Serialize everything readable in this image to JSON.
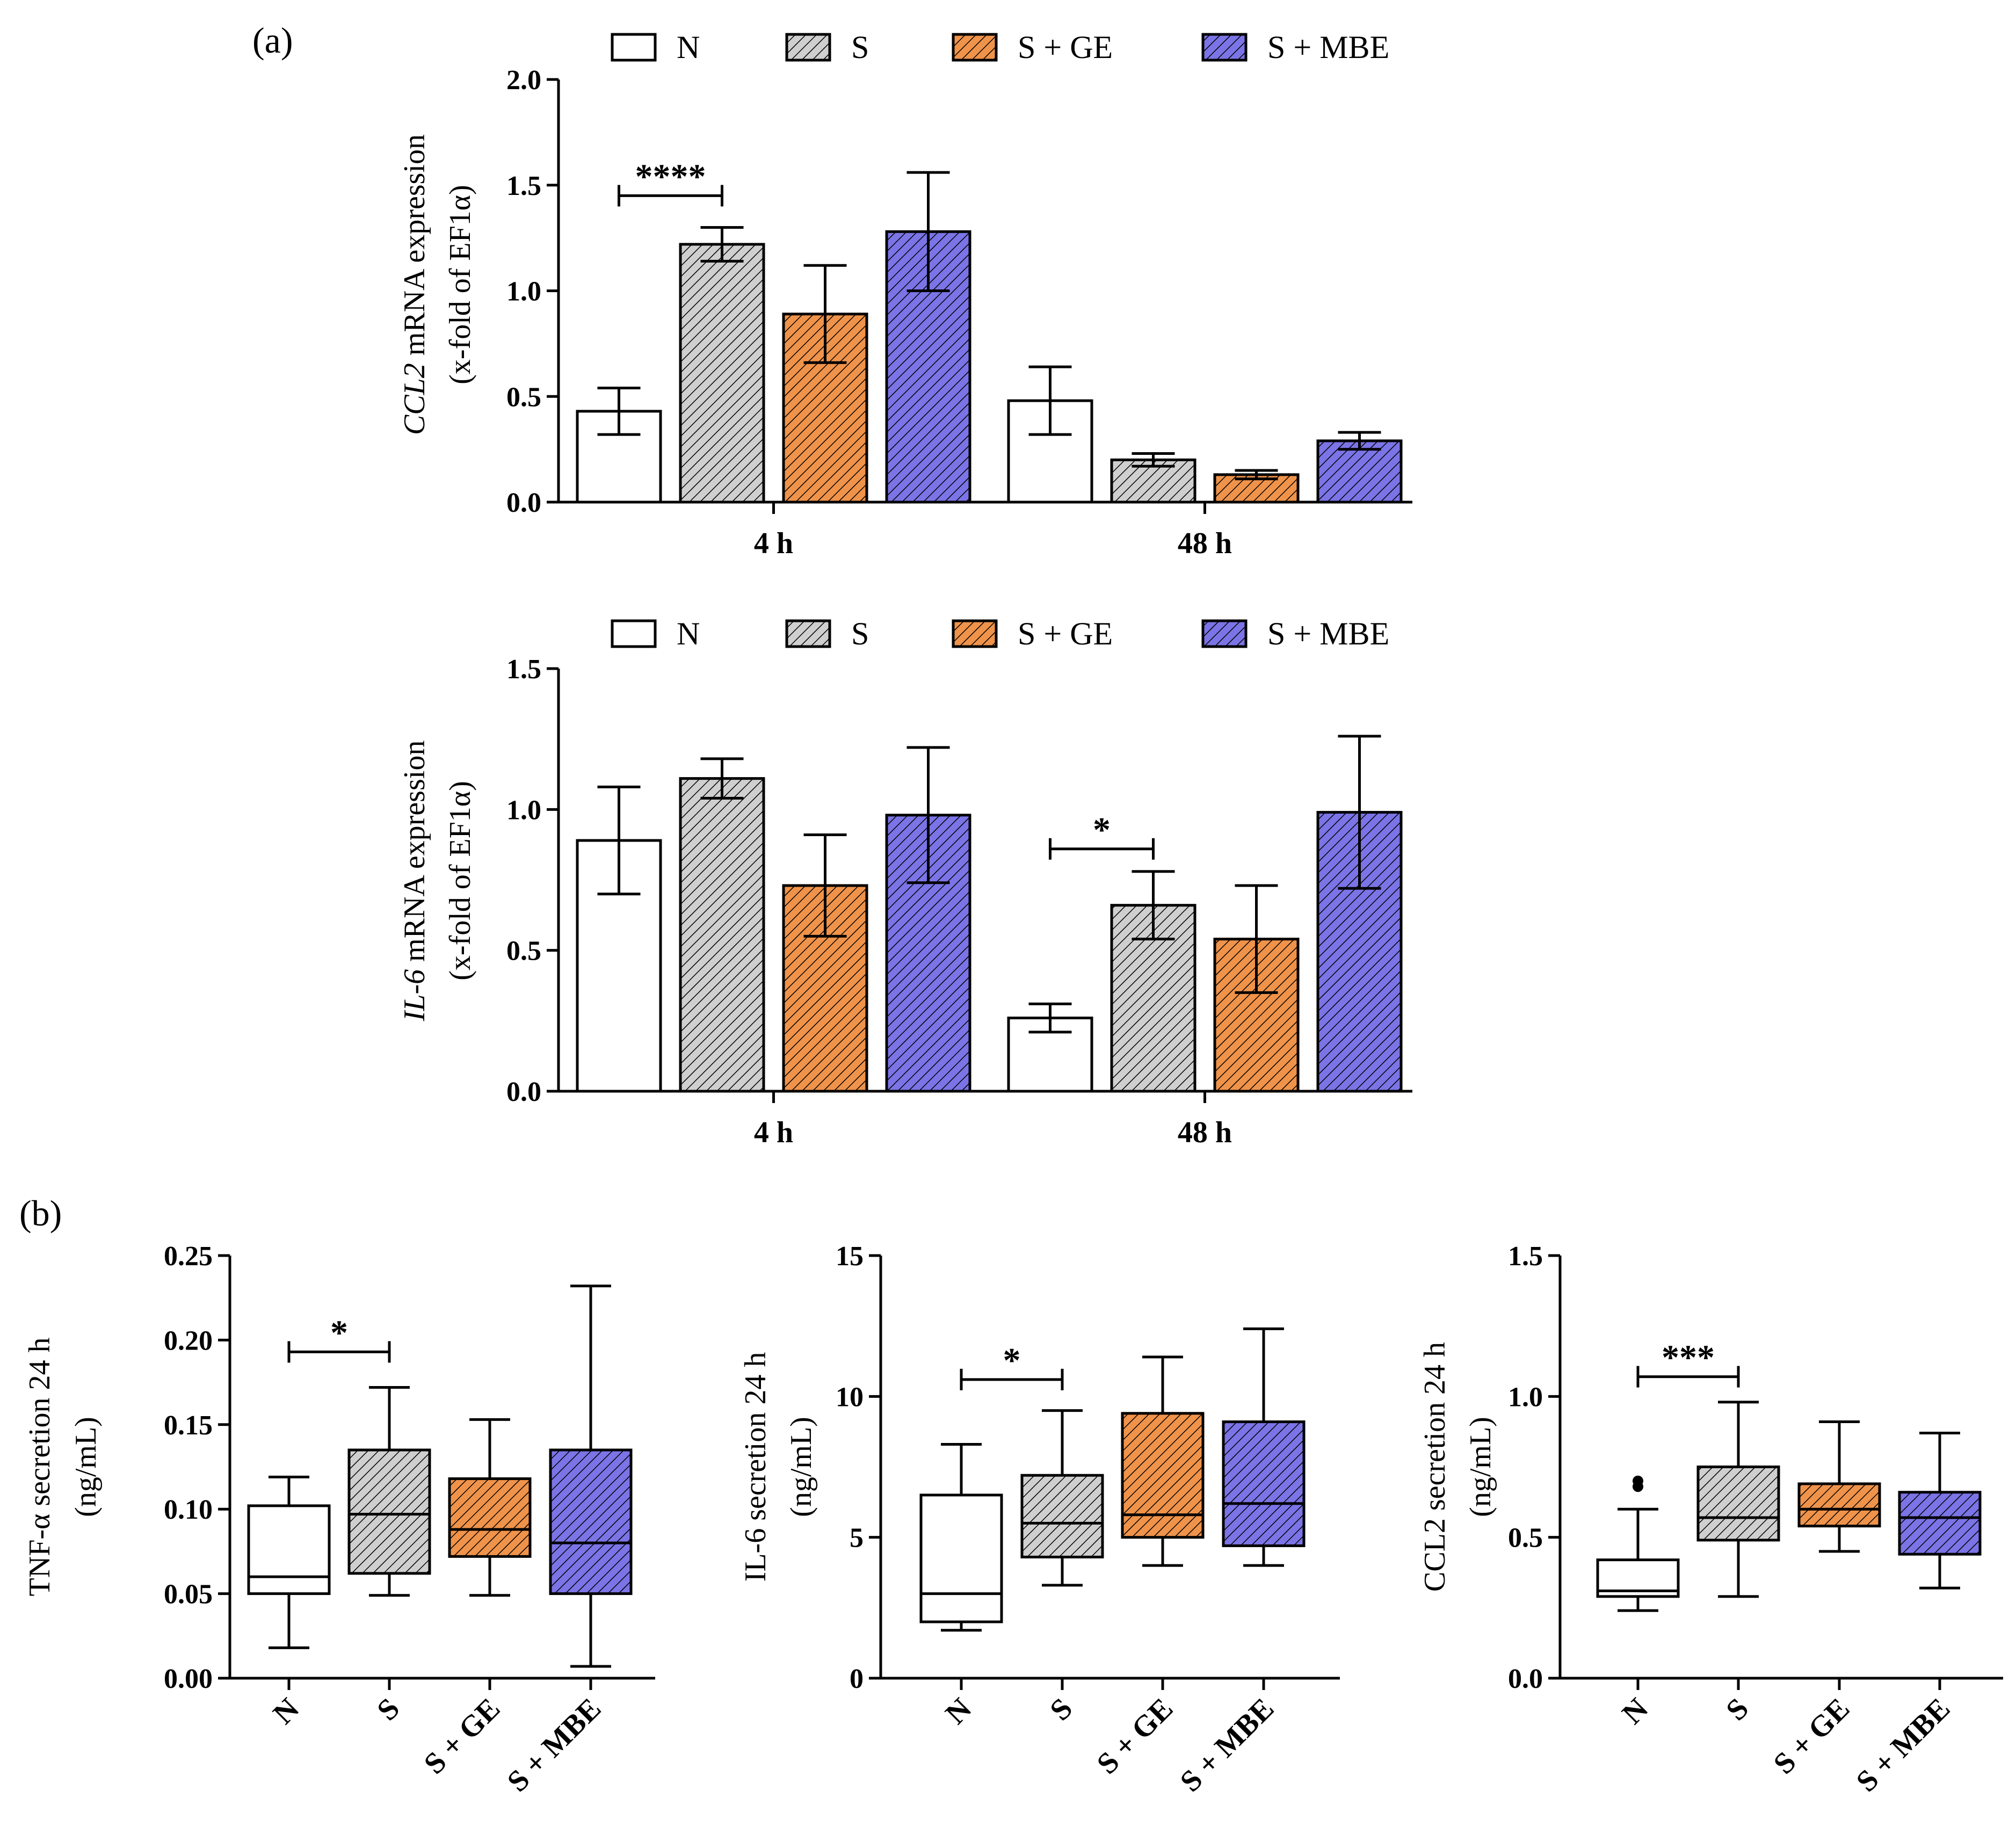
{
  "panel_labels": {
    "a": "(a)",
    "b": "(b)"
  },
  "legend": [
    {
      "name": "N",
      "fill": "#ffffff",
      "hatch": false
    },
    {
      "name": "S",
      "fill": "#cfcfcf",
      "hatch": true
    },
    {
      "name": "S + GE",
      "fill": "#f0934a",
      "hatch": true
    },
    {
      "name": "S + MBE",
      "fill": "#7b74e6",
      "hatch": true
    }
  ],
  "chart_data": [
    {
      "id": "ccl2_mrna",
      "type": "bar",
      "ylabel_italic": "CCL2",
      "ylabel_rest": " mRNA expression",
      "ylabel_line2": "(x-fold of EF1α)",
      "categories": [
        "4 h",
        "48 h"
      ],
      "ylim": [
        0,
        2.0
      ],
      "yticks": [
        "0.0",
        "0.5",
        "1.0",
        "1.5",
        "2.0"
      ],
      "series": [
        {
          "name": "N",
          "values": [
            0.43,
            0.48
          ],
          "errors": [
            0.11,
            0.16
          ]
        },
        {
          "name": "S",
          "values": [
            1.22,
            0.2
          ],
          "errors": [
            0.08,
            0.03
          ]
        },
        {
          "name": "S + GE",
          "values": [
            0.89,
            0.13
          ],
          "errors": [
            0.23,
            0.02
          ]
        },
        {
          "name": "S + MBE",
          "values": [
            1.28,
            0.29
          ],
          "errors": [
            0.28,
            0.04
          ]
        }
      ],
      "significance": [
        {
          "category": 0,
          "from": 0,
          "to": 1,
          "label": "****",
          "level": 1.45
        }
      ]
    },
    {
      "id": "il6_mrna",
      "type": "bar",
      "ylabel_italic": "IL-6",
      "ylabel_rest": " mRNA expression",
      "ylabel_line2": "(x-fold of EF1α)",
      "categories": [
        "4 h",
        "48 h"
      ],
      "ylim": [
        0,
        1.5
      ],
      "yticks": [
        "0.0",
        "0.5",
        "1.0",
        "1.5"
      ],
      "series": [
        {
          "name": "N",
          "values": [
            0.89,
            0.26
          ],
          "errors": [
            0.19,
            0.05
          ]
        },
        {
          "name": "S",
          "values": [
            1.11,
            0.66
          ],
          "errors": [
            0.07,
            0.12
          ]
        },
        {
          "name": "S + GE",
          "values": [
            0.73,
            0.54
          ],
          "errors": [
            0.18,
            0.19
          ]
        },
        {
          "name": "S + MBE",
          "values": [
            0.98,
            0.99
          ],
          "errors": [
            0.24,
            0.27
          ]
        }
      ],
      "significance": [
        {
          "category": 1,
          "from": 0,
          "to": 1,
          "label": "*",
          "level": 0.86
        }
      ]
    },
    {
      "id": "tnf_secretion",
      "type": "box",
      "ylabel_line1": "TNF-α secretion 24 h",
      "ylabel_line2": "(ng/mL)",
      "categories": [
        "N",
        "S",
        "S + GE",
        "S + MBE"
      ],
      "ylim": [
        0,
        0.25
      ],
      "yticks": [
        "0.00",
        "0.05",
        "0.10",
        "0.15",
        "0.20",
        "0.25"
      ],
      "boxes": [
        {
          "min": 0.018,
          "q1": 0.05,
          "median": 0.06,
          "q3": 0.102,
          "max": 0.119,
          "outliers": []
        },
        {
          "min": 0.049,
          "q1": 0.062,
          "median": 0.097,
          "q3": 0.135,
          "max": 0.172,
          "outliers": []
        },
        {
          "min": 0.049,
          "q1": 0.072,
          "median": 0.088,
          "q3": 0.118,
          "max": 0.153,
          "outliers": []
        },
        {
          "min": 0.007,
          "q1": 0.05,
          "median": 0.08,
          "q3": 0.135,
          "max": 0.232,
          "outliers": []
        }
      ],
      "significance": [
        {
          "from": 0,
          "to": 1,
          "label": "*",
          "level": 0.193
        }
      ]
    },
    {
      "id": "il6_secretion",
      "type": "box",
      "ylabel_line1": "IL-6 secretion 24 h",
      "ylabel_line2": "(ng/mL)",
      "categories": [
        "N",
        "S",
        "S + GE",
        "S + MBE"
      ],
      "ylim": [
        0,
        15
      ],
      "yticks": [
        "0",
        "5",
        "10",
        "15"
      ],
      "boxes": [
        {
          "min": 1.7,
          "q1": 2.0,
          "median": 3.0,
          "q3": 6.5,
          "max": 8.3,
          "outliers": []
        },
        {
          "min": 3.3,
          "q1": 4.3,
          "median": 5.5,
          "q3": 7.2,
          "max": 9.5,
          "outliers": []
        },
        {
          "min": 4.0,
          "q1": 5.0,
          "median": 5.8,
          "q3": 9.4,
          "max": 11.4,
          "outliers": []
        },
        {
          "min": 4.0,
          "q1": 4.7,
          "median": 6.2,
          "q3": 9.1,
          "max": 12.4,
          "outliers": []
        }
      ],
      "significance": [
        {
          "from": 0,
          "to": 1,
          "label": "*",
          "level": 10.6
        }
      ]
    },
    {
      "id": "ccl2_secretion",
      "type": "box",
      "ylabel_line1": "CCL2 secretion 24 h",
      "ylabel_line2": "(ng/mL)",
      "categories": [
        "N",
        "S",
        "S + GE",
        "S + MBE"
      ],
      "ylim": [
        0,
        1.5
      ],
      "yticks": [
        "0.0",
        "0.5",
        "1.0",
        "1.5"
      ],
      "boxes": [
        {
          "min": 0.24,
          "q1": 0.29,
          "median": 0.31,
          "q3": 0.42,
          "max": 0.6,
          "outliers": [
            0.68,
            0.7
          ]
        },
        {
          "min": 0.29,
          "q1": 0.49,
          "median": 0.57,
          "q3": 0.75,
          "max": 0.98,
          "outliers": []
        },
        {
          "min": 0.45,
          "q1": 0.54,
          "median": 0.6,
          "q3": 0.69,
          "max": 0.91,
          "outliers": []
        },
        {
          "min": 0.32,
          "q1": 0.44,
          "median": 0.57,
          "q3": 0.66,
          "max": 0.87,
          "outliers": []
        }
      ],
      "significance": [
        {
          "from": 0,
          "to": 1,
          "label": "***",
          "level": 1.07
        }
      ]
    }
  ]
}
